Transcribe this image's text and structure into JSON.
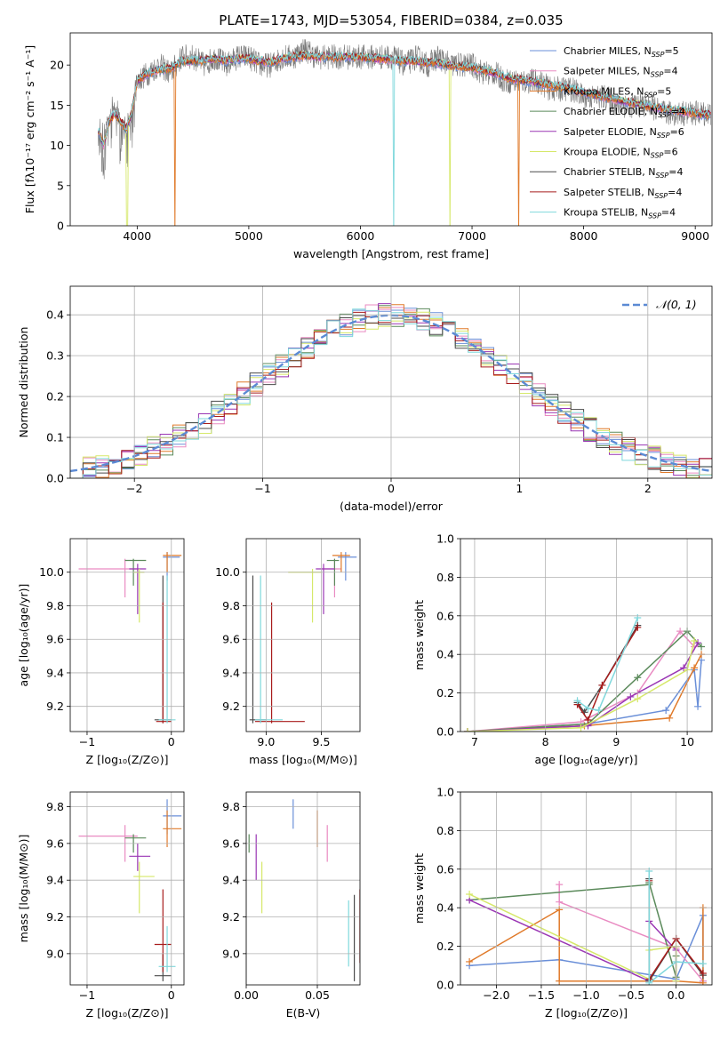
{
  "title": "PLATE=1743, MJD=53054, FIBERID=0384, z=0.035",
  "series_names": [
    "Chabrier MILES, N_SSP=5",
    "Salpeter MILES, N_SSP=4",
    "Kroupa MILES, N_SSP=5",
    "Chabrier ELODIE, N_SSP=4",
    "Salpeter ELODIE, N_SSP=6",
    "Kroupa ELODIE, N_SSP=6",
    "Chabrier STELIB, N_SSP=4",
    "Salpeter STELIB, N_SSP=4",
    "Kroupa STELIB, N_SSP=4"
  ],
  "colors": [
    "#6a8fd8",
    "#e98bc2",
    "#e07a2a",
    "#5b8a5b",
    "#9a36b4",
    "#d6e86a",
    "#4a4a4a",
    "#a81c1c",
    "#7fd8dc"
  ],
  "chart_data": [
    {
      "type": "line",
      "id": "spectrum",
      "title": "PLATE=1743, MJD=53054, FIBERID=0384, z=0.035",
      "xlabel": "wavelength [Angstrom, rest frame]",
      "ylabel": "Flux [fλ10⁻¹⁷ erg cm⁻² s⁻¹ A⁻¹]",
      "xlim": [
        3400,
        9150
      ],
      "ylim": [
        0,
        24
      ],
      "xticks": [
        4000,
        5000,
        6000,
        7000,
        8000,
        9000
      ],
      "yticks": [
        0,
        5,
        10,
        15,
        20
      ],
      "legend": [
        {
          "name": "Chabrier MILES, N",
          "sub": "SSP",
          "eq": "=5"
        },
        {
          "name": "Salpeter MILES, N",
          "sub": "SSP",
          "eq": "=4"
        },
        {
          "name": "Kroupa MILES, N",
          "sub": "SSP",
          "eq": "=5"
        },
        {
          "name": "Chabrier ELODIE, N",
          "sub": "SSP",
          "eq": "=4"
        },
        {
          "name": "Salpeter ELODIE, N",
          "sub": "SSP",
          "eq": "=6"
        },
        {
          "name": "Kroupa ELODIE, N",
          "sub": "SSP",
          "eq": "=6"
        },
        {
          "name": "Chabrier STELIB, N",
          "sub": "SSP",
          "eq": "=4"
        },
        {
          "name": "Salpeter STELIB, N",
          "sub": "SSP",
          "eq": "=4"
        },
        {
          "name": "Kroupa STELIB, N",
          "sub": "SSP",
          "eq": "=4"
        }
      ],
      "legend_position": "top-right",
      "data_wavelength": [
        3650,
        3700,
        3750,
        3800,
        3850,
        3900,
        3950,
        4000,
        4100,
        4200,
        4300,
        4400,
        4500,
        4600,
        4700,
        4800,
        4900,
        5000,
        5100,
        5200,
        5300,
        5400,
        5500,
        5600,
        5700,
        5800,
        5900,
        6000,
        6100,
        6200,
        6300,
        6400,
        6500,
        6600,
        6700,
        6800,
        6900,
        7000,
        7100,
        7200,
        7300,
        7400,
        7500,
        7600,
        7700,
        7800,
        7900,
        8000,
        8100,
        8200,
        8300,
        8400,
        8500,
        8600,
        8700,
        8800,
        8900,
        9000,
        9100
      ],
      "data_flux": [
        13,
        11,
        14,
        15,
        13,
        12,
        14,
        18,
        19,
        20,
        19,
        21,
        21,
        20,
        21,
        20,
        21,
        21,
        20,
        20,
        21,
        21,
        22,
        21,
        21,
        21,
        21,
        21,
        21,
        21,
        21,
        20,
        21,
        20,
        21,
        20,
        20,
        20,
        19,
        19,
        18,
        18,
        18,
        18,
        17,
        17,
        17,
        16,
        16,
        16,
        15,
        15,
        15,
        15,
        14,
        14,
        14,
        14,
        14
      ],
      "model_flux": [
        12,
        10,
        13,
        14,
        13,
        12,
        14,
        18,
        19,
        19.5,
        19.5,
        20.5,
        20.5,
        20.5,
        20.8,
        20.5,
        20.8,
        20.8,
        20.5,
        20.3,
        20.8,
        21,
        21.2,
        21,
        21,
        21,
        21,
        21,
        20.8,
        20.8,
        20.6,
        20.5,
        20.5,
        20.3,
        20.2,
        20,
        19.8,
        19.7,
        19.3,
        19,
        18.5,
        18.2,
        18,
        17.8,
        17.5,
        17.2,
        17,
        16.6,
        16.3,
        16,
        15.7,
        15.4,
        15.1,
        14.8,
        14.6,
        14.4,
        14.2,
        14,
        13.8
      ],
      "dropouts": [
        {
          "series": 5,
          "wavelength": 3910
        },
        {
          "series": 2,
          "wavelength": 4340
        },
        {
          "series": 8,
          "wavelength": 6300
        },
        {
          "series": 5,
          "wavelength": 6800
        },
        {
          "series": 2,
          "wavelength": 7420
        }
      ]
    },
    {
      "type": "histogram",
      "id": "residuals",
      "xlabel": "(data-model)/error",
      "ylabel": "Normed distribution",
      "xlim": [
        -2.5,
        2.5
      ],
      "ylim": [
        0,
        0.47
      ],
      "xticks": [
        -2,
        -1,
        0,
        1,
        2
      ],
      "yticks": [
        0.0,
        0.1,
        0.2,
        0.3,
        0.4
      ],
      "legend": "𝒩(0, 1)",
      "legend_position": "top-right",
      "bin_width": 0.1,
      "bin_start": -2.5
    },
    {
      "type": "scatter",
      "id": "age-vs-Z",
      "xlabel": "Z [log₁₀(Z/Z⊙)]",
      "ylabel": "age  [log₁₀(age/yr)]",
      "xlim": [
        -1.2,
        0.15
      ],
      "ylim": [
        9.05,
        10.2
      ],
      "xticks": [
        -1,
        0
      ],
      "yticks": [
        9.2,
        9.4,
        9.6,
        9.8,
        10.0
      ],
      "points": [
        {
          "s": 0,
          "x": -0.05,
          "y": 10.09,
          "xe": [
            -0.1,
            0.1
          ],
          "ye": [
            9.95,
            10.12
          ]
        },
        {
          "s": 1,
          "x": -0.55,
          "y": 10.02,
          "xe": [
            -1.1,
            -0.4
          ],
          "ye": [
            9.85,
            10.08
          ]
        },
        {
          "s": 2,
          "x": -0.05,
          "y": 10.1,
          "xe": [
            -0.1,
            0.12
          ],
          "ye": [
            10.0,
            10.12
          ]
        },
        {
          "s": 3,
          "x": -0.45,
          "y": 10.07,
          "xe": [
            -0.55,
            -0.3
          ],
          "ye": [
            9.92,
            10.08
          ]
        },
        {
          "s": 4,
          "x": -0.4,
          "y": 10.02,
          "xe": [
            -0.5,
            -0.3
          ],
          "ye": [
            9.75,
            10.05
          ]
        },
        {
          "s": 5,
          "x": -0.38,
          "y": 10.0,
          "xe": [
            -0.45,
            -0.32
          ],
          "ye": [
            9.7,
            10.02
          ]
        },
        {
          "s": 6,
          "x": -0.1,
          "y": 9.12,
          "xe": [
            -0.2,
            0.0
          ],
          "ye": [
            9.1,
            9.98
          ]
        },
        {
          "s": 7,
          "x": -0.1,
          "y": 9.11,
          "xe": [
            -0.18,
            0.0
          ],
          "ye": [
            9.1,
            9.82
          ]
        },
        {
          "s": 8,
          "x": -0.05,
          "y": 9.12,
          "xe": [
            -0.15,
            0.05
          ],
          "ye": [
            9.1,
            9.98
          ]
        }
      ]
    },
    {
      "type": "scatter",
      "id": "age-vs-mass",
      "xlabel": "mass [log₁₀(M/M⊙)]",
      "ylabel": "",
      "xlim": [
        8.82,
        9.85
      ],
      "ylim": [
        9.05,
        10.2
      ],
      "xticks": [
        9.0,
        9.5
      ],
      "yticks": [
        9.2,
        9.4,
        9.6,
        9.8,
        10.0
      ],
      "points": [
        {
          "s": 0,
          "x": 9.72,
          "y": 10.09,
          "xe": [
            9.65,
            9.82
          ],
          "ye": [
            9.95,
            10.12
          ]
        },
        {
          "s": 1,
          "x": 9.62,
          "y": 10.02,
          "xe": [
            9.5,
            9.68
          ],
          "ye": [
            9.85,
            10.08
          ]
        },
        {
          "s": 2,
          "x": 9.68,
          "y": 10.1,
          "xe": [
            9.6,
            9.76
          ],
          "ye": [
            10.0,
            10.12
          ]
        },
        {
          "s": 3,
          "x": 9.62,
          "y": 10.07,
          "xe": [
            9.55,
            9.66
          ],
          "ye": [
            9.92,
            10.08
          ]
        },
        {
          "s": 4,
          "x": 9.52,
          "y": 10.02,
          "xe": [
            9.45,
            9.62
          ],
          "ye": [
            9.75,
            10.05
          ]
        },
        {
          "s": 5,
          "x": 9.42,
          "y": 10.0,
          "xe": [
            9.2,
            9.5
          ],
          "ye": [
            9.7,
            10.02
          ]
        },
        {
          "s": 6,
          "x": 8.88,
          "y": 9.12,
          "xe": [
            8.85,
            9.0
          ],
          "ye": [
            9.1,
            9.98
          ]
        },
        {
          "s": 7,
          "x": 9.05,
          "y": 9.11,
          "xe": [
            8.9,
            9.35
          ],
          "ye": [
            9.1,
            9.82
          ]
        },
        {
          "s": 8,
          "x": 8.95,
          "y": 9.12,
          "xe": [
            8.9,
            9.15
          ],
          "ye": [
            9.1,
            9.98
          ]
        }
      ]
    },
    {
      "type": "line",
      "id": "weight-vs-age",
      "xlabel": "age  [log₁₀(age/yr)]",
      "ylabel": "mass weight",
      "xlim": [
        6.8,
        10.35
      ],
      "ylim": [
        0,
        1.0
      ],
      "xticks": [
        7,
        8,
        9,
        10
      ],
      "yticks": [
        0.0,
        0.2,
        0.4,
        0.6,
        0.8,
        1.0
      ],
      "series": [
        {
          "s": 0,
          "x": [
            6.9,
            8.6,
            9.7,
            10.1,
            10.15,
            10.2
          ],
          "y": [
            0.0,
            0.04,
            0.11,
            0.32,
            0.13,
            0.37
          ]
        },
        {
          "s": 1,
          "x": [
            6.9,
            8.5,
            9.3,
            9.9,
            10.1
          ],
          "y": [
            0.0,
            0.05,
            0.2,
            0.52,
            0.44
          ]
        },
        {
          "s": 2,
          "x": [
            6.9,
            8.55,
            9.75,
            10.1,
            10.2
          ],
          "y": [
            0.0,
            0.03,
            0.07,
            0.33,
            0.4
          ]
        },
        {
          "s": 3,
          "x": [
            6.9,
            8.6,
            9.3,
            10.0,
            10.2
          ],
          "y": [
            0.0,
            0.04,
            0.28,
            0.52,
            0.44
          ]
        },
        {
          "s": 4,
          "x": [
            6.9,
            8.6,
            9.2,
            9.95,
            10.15
          ],
          "y": [
            0.0,
            0.03,
            0.18,
            0.33,
            0.46
          ]
        },
        {
          "s": 5,
          "x": [
            6.9,
            8.5,
            9.3,
            10.0,
            10.1
          ],
          "y": [
            0.0,
            0.02,
            0.17,
            0.32,
            0.47
          ]
        },
        {
          "s": 6,
          "x": [
            8.45,
            8.55,
            8.8,
            9.3
          ],
          "y": [
            0.15,
            0.1,
            0.24,
            0.55
          ]
        },
        {
          "s": 7,
          "x": [
            8.45,
            8.6,
            8.8,
            9.3
          ],
          "y": [
            0.14,
            0.06,
            0.24,
            0.54
          ]
        },
        {
          "s": 8,
          "x": [
            8.45,
            8.6,
            8.75,
            9.3
          ],
          "y": [
            0.16,
            0.12,
            0.11,
            0.59
          ]
        }
      ]
    },
    {
      "type": "scatter",
      "id": "mass-vs-Z",
      "xlabel": "Z [log₁₀(Z/Z⊙)]",
      "ylabel": "mass [log₁₀(M/M⊙)]",
      "xlim": [
        -1.2,
        0.15
      ],
      "ylim": [
        8.83,
        9.88
      ],
      "xticks": [
        -1,
        0
      ],
      "yticks": [
        9.0,
        9.2,
        9.4,
        9.6,
        9.8
      ],
      "points": [
        {
          "s": 0,
          "x": -0.05,
          "y": 9.75,
          "xe": [
            -0.1,
            0.12
          ],
          "ye": [
            9.65,
            9.84
          ]
        },
        {
          "s": 1,
          "x": -0.55,
          "y": 9.64,
          "xe": [
            -1.1,
            -0.4
          ],
          "ye": [
            9.5,
            9.7
          ]
        },
        {
          "s": 2,
          "x": -0.05,
          "y": 9.68,
          "xe": [
            -0.1,
            0.12
          ],
          "ye": [
            9.58,
            9.78
          ]
        },
        {
          "s": 3,
          "x": -0.45,
          "y": 9.63,
          "xe": [
            -0.55,
            -0.3
          ],
          "ye": [
            9.55,
            9.65
          ]
        },
        {
          "s": 4,
          "x": -0.4,
          "y": 9.53,
          "xe": [
            -0.5,
            -0.25
          ],
          "ye": [
            9.45,
            9.6
          ]
        },
        {
          "s": 5,
          "x": -0.38,
          "y": 9.42,
          "xe": [
            -0.45,
            -0.2
          ],
          "ye": [
            9.22,
            9.5
          ]
        },
        {
          "s": 6,
          "x": -0.1,
          "y": 8.88,
          "xe": [
            -0.2,
            0.0
          ],
          "ye": [
            8.85,
            9.0
          ]
        },
        {
          "s": 7,
          "x": -0.1,
          "y": 9.05,
          "xe": [
            -0.2,
            0.0
          ],
          "ye": [
            8.9,
            9.35
          ]
        },
        {
          "s": 8,
          "x": -0.05,
          "y": 8.93,
          "xe": [
            -0.15,
            0.05
          ],
          "ye": [
            8.9,
            9.15
          ]
        }
      ]
    },
    {
      "type": "scatter",
      "id": "mass-vs-EBV",
      "xlabel": "E(B-V)",
      "ylabel": "",
      "xlim": [
        0,
        0.08
      ],
      "ylim": [
        8.83,
        9.88
      ],
      "xticks": [
        0.0,
        0.05
      ],
      "yticks": [
        9.0,
        9.2,
        9.4,
        9.6,
        9.8
      ],
      "points": [
        {
          "s": 0,
          "x": 0.033,
          "y": 9.75,
          "ye": [
            9.68,
            9.84
          ]
        },
        {
          "s": 1,
          "x": 0.057,
          "y": 9.62,
          "ye": [
            9.5,
            9.7
          ]
        },
        {
          "s": 2,
          "x": 0.05,
          "y": 9.68,
          "ye": [
            9.58,
            9.78
          ]
        },
        {
          "s": 3,
          "x": 0.002,
          "y": 9.6,
          "ye": [
            9.55,
            9.65
          ]
        },
        {
          "s": 4,
          "x": 0.007,
          "y": 9.53,
          "ye": [
            9.4,
            9.65
          ]
        },
        {
          "s": 5,
          "x": 0.011,
          "y": 9.42,
          "ye": [
            9.22,
            9.5
          ]
        },
        {
          "s": 6,
          "x": 0.076,
          "y": 9.05,
          "ye": [
            8.85,
            9.32
          ]
        },
        {
          "s": 7,
          "x": 0.08,
          "y": 9.1,
          "ye": [
            8.95,
            9.35
          ]
        },
        {
          "s": 8,
          "x": 0.072,
          "y": 9.05,
          "ye": [
            8.93,
            9.29
          ]
        }
      ]
    },
    {
      "type": "line",
      "id": "weight-vs-Z",
      "xlabel": "Z [log₁₀(Z/Z⊙)]",
      "ylabel": "mass weight",
      "xlim": [
        -2.4,
        0.4
      ],
      "ylim": [
        0,
        1.0
      ],
      "xticks": [
        -2.0,
        -1.5,
        -1.0,
        -0.5,
        0.0
      ],
      "yticks": [
        0.0,
        0.2,
        0.4,
        0.6,
        0.8,
        1.0
      ],
      "series": [
        {
          "s": 0,
          "x": [
            -2.3,
            -1.3,
            0.0,
            0.3,
            0.3
          ],
          "y": [
            0.1,
            0.13,
            0.03,
            0.36,
            0.02
          ]
        },
        {
          "s": 1,
          "x": [
            -1.3,
            -1.3,
            0.0,
            0.3
          ],
          "y": [
            0.52,
            0.43,
            0.19,
            0.02
          ]
        },
        {
          "s": 2,
          "x": [
            -2.3,
            -1.3,
            -1.3,
            0.0,
            0.3,
            0.3
          ],
          "y": [
            0.12,
            0.39,
            0.02,
            0.02,
            0.01,
            0.4
          ]
        },
        {
          "s": 3,
          "x": [
            -2.3,
            -0.3,
            -0.3,
            0.0,
            0.0
          ],
          "y": [
            0.44,
            0.52,
            0.53,
            0.04,
            0.15
          ]
        },
        {
          "s": 4,
          "x": [
            -2.3,
            -0.3,
            -0.3,
            0.0,
            0.0
          ],
          "y": [
            0.44,
            0.02,
            0.33,
            0.18,
            0.02
          ]
        },
        {
          "s": 5,
          "x": [
            -2.3,
            -0.3,
            -0.3,
            0.0,
            0.0
          ],
          "y": [
            0.47,
            0.03,
            0.18,
            0.2,
            0.02
          ]
        },
        {
          "s": 6,
          "x": [
            -0.3,
            -0.3,
            0.0,
            0.3
          ],
          "y": [
            0.55,
            0.02,
            0.24,
            0.05
          ]
        },
        {
          "s": 7,
          "x": [
            -0.3,
            -0.3,
            0.0,
            0.3
          ],
          "y": [
            0.54,
            0.03,
            0.24,
            0.06
          ]
        },
        {
          "s": 8,
          "x": [
            -0.3,
            -0.3,
            0.0,
            0.3
          ],
          "y": [
            0.59,
            0.01,
            0.12,
            0.11
          ]
        }
      ]
    }
  ]
}
